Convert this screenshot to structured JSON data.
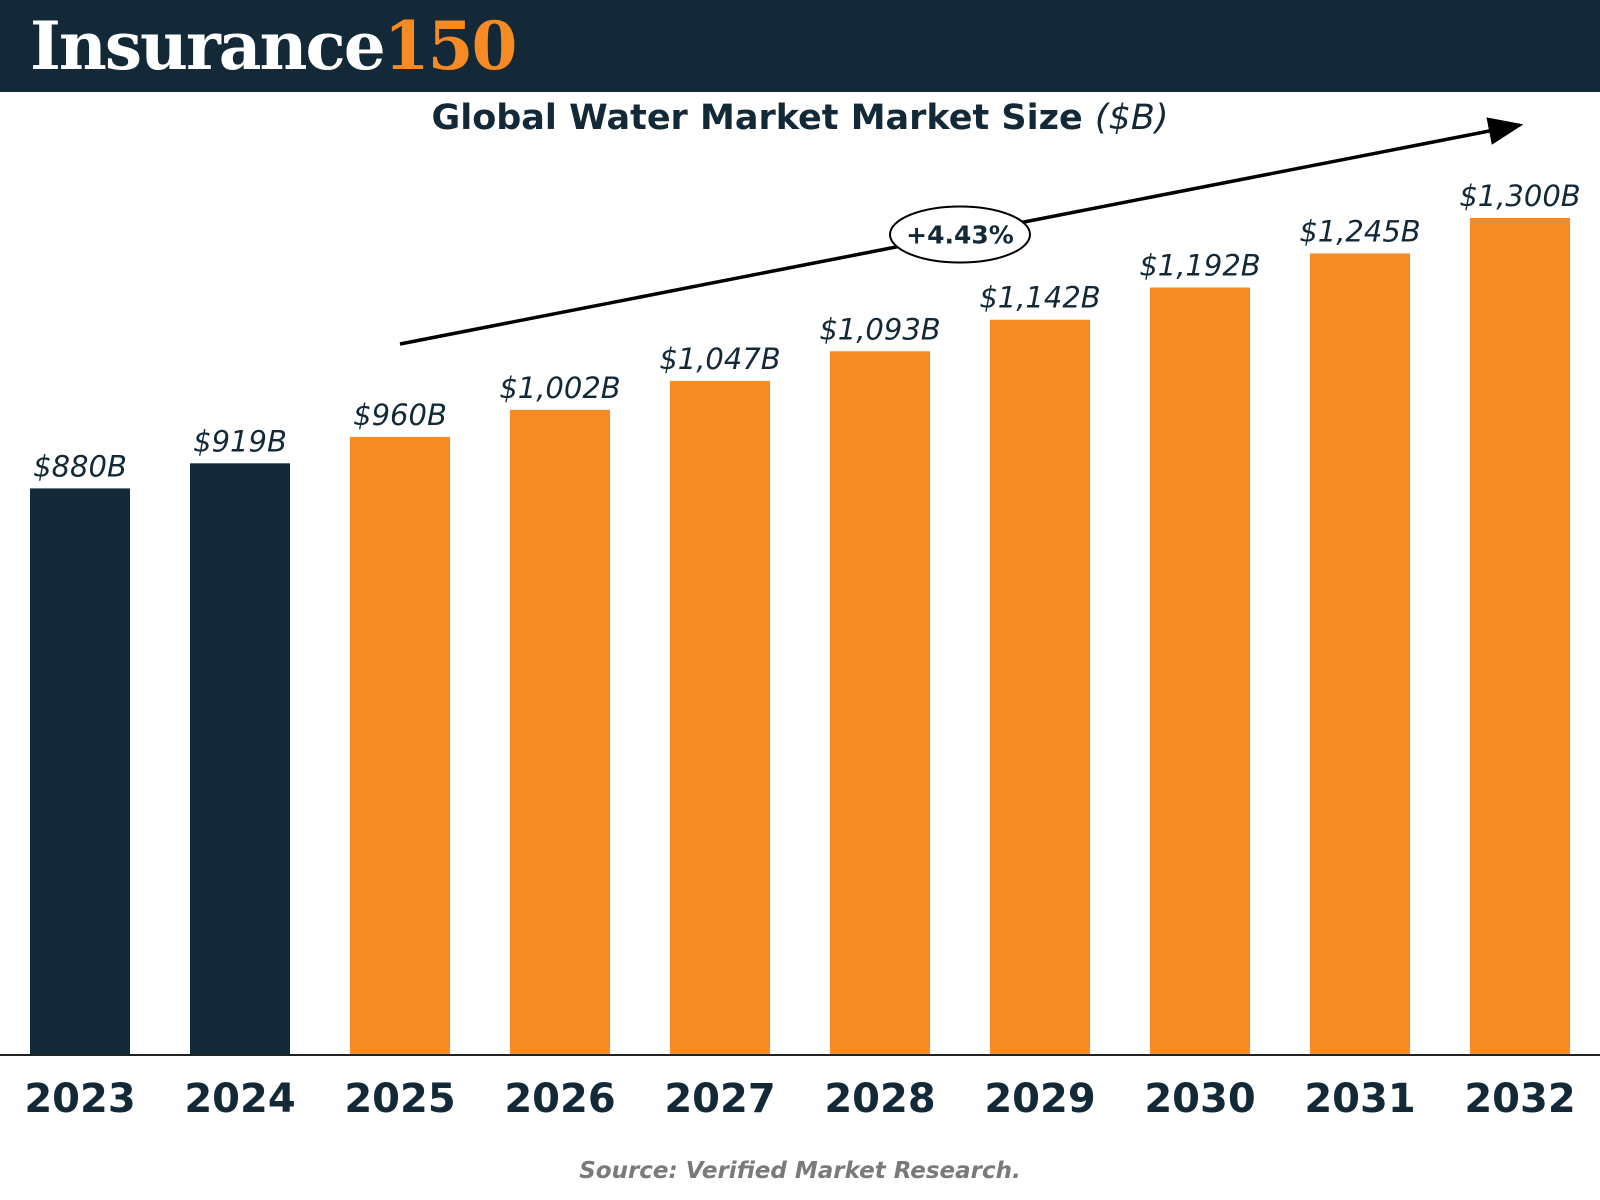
{
  "brand": {
    "logo_word": "Insurance",
    "logo_number": "150"
  },
  "source": "Source: Verified Market Research.",
  "colors": {
    "header_bg": "#142937",
    "historical_bar": "#142937",
    "forecast_bar": "#f68a24",
    "logo_accent": "#f68a24"
  },
  "chart_data": {
    "type": "bar",
    "title": "Global Water Market Market Size",
    "title_unit": "($B)",
    "categories": [
      "2023",
      "2024",
      "2025",
      "2026",
      "2027",
      "2028",
      "2029",
      "2030",
      "2031",
      "2032"
    ],
    "values": [
      880,
      919,
      960,
      1002,
      1047,
      1093,
      1142,
      1192,
      1245,
      1300
    ],
    "value_labels": [
      "$880B",
      "$919B",
      "$960B",
      "$1,002B",
      "$1,047B",
      "$1,093B",
      "$1,142B",
      "$1,192B",
      "$1,245B",
      "$1,300B"
    ],
    "bar_colors": [
      "#142937",
      "#142937",
      "#f68a24",
      "#f68a24",
      "#f68a24",
      "#f68a24",
      "#f68a24",
      "#f68a24",
      "#f68a24",
      "#f68a24"
    ],
    "annotation": {
      "label": "+4.43%",
      "kind": "trend-arrow"
    },
    "xlabel": "",
    "ylabel": "",
    "ylim": [
      0,
      1300
    ],
    "grid": false,
    "legend": "none"
  }
}
